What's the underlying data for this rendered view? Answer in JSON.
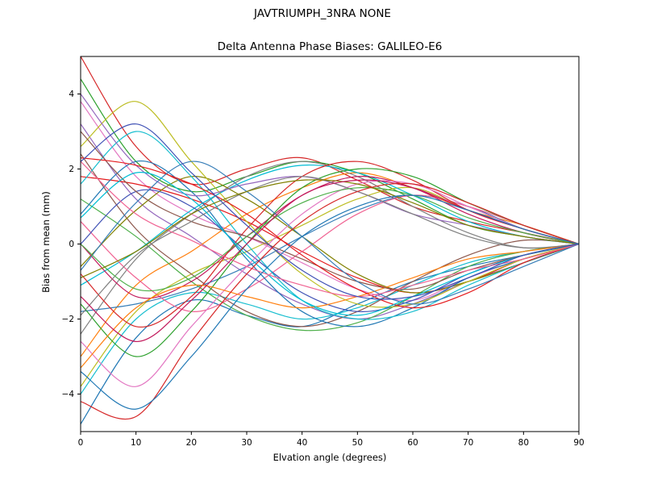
{
  "figure": {
    "suptitle": "JAVTRIUMPH_3NRA NONE",
    "title": "Delta Antenna Phase Biases: GALILEO-E6",
    "xlabel": "Elvation angle (degrees)",
    "ylabel": "Bias from mean (mm)"
  },
  "chart_data": {
    "type": "line",
    "suptitle": "JAVTRIUMPH_3NRA NONE",
    "title": "Delta Antenna Phase Biases: GALILEO-E6",
    "xlabel": "Elvation angle (degrees)",
    "ylabel": "Bias from mean (mm)",
    "xlim": [
      0,
      90
    ],
    "ylim": [
      -5,
      5
    ],
    "xticks": [
      0,
      10,
      20,
      30,
      40,
      50,
      60,
      70,
      80,
      90
    ],
    "yticks": [
      -4,
      -2,
      0,
      2,
      4
    ],
    "grid": false,
    "legend": "none",
    "x": [
      0,
      10,
      20,
      30,
      40,
      50,
      60,
      70,
      80,
      90
    ],
    "series": [
      {
        "color": "#d62728",
        "values": [
          5.0,
          2.6,
          1.6,
          2.0,
          2.3,
          1.7,
          1.0,
          0.6,
          0.3,
          0
        ]
      },
      {
        "color": "#1f77b4",
        "values": [
          -4.8,
          -2.5,
          -1.5,
          -1.9,
          -2.2,
          -1.6,
          -1.0,
          -0.6,
          -0.3,
          0
        ]
      },
      {
        "color": "#2ca02c",
        "values": [
          4.4,
          2.2,
          1.4,
          1.8,
          2.2,
          1.9,
          1.2,
          0.5,
          0.2,
          0
        ]
      },
      {
        "color": "#17becf",
        "values": [
          -4.0,
          -2.0,
          -1.3,
          -1.6,
          -2.0,
          -1.7,
          -1.1,
          -0.5,
          -0.2,
          0
        ]
      },
      {
        "color": "#e377c2",
        "values": [
          3.8,
          1.8,
          0.8,
          0.2,
          -0.5,
          -1.2,
          -1.5,
          -0.9,
          -0.4,
          0
        ]
      },
      {
        "color": "#bcbd22",
        "values": [
          -3.8,
          -1.8,
          -0.8,
          -0.2,
          0.5,
          1.2,
          1.5,
          0.9,
          0.4,
          0
        ]
      },
      {
        "color": "#9467bd",
        "values": [
          3.2,
          1.2,
          0.2,
          -0.8,
          -1.6,
          -2.0,
          -1.6,
          -1.0,
          -0.5,
          0
        ]
      },
      {
        "color": "#ff7f0e",
        "values": [
          -3.0,
          -1.1,
          -0.2,
          0.8,
          1.5,
          1.9,
          1.5,
          0.9,
          0.5,
          0
        ]
      },
      {
        "color": "#8c564b",
        "values": [
          2.4,
          0.4,
          -0.8,
          -1.8,
          -2.2,
          -1.8,
          -1.0,
          -0.3,
          0.1,
          0
        ]
      },
      {
        "color": "#7f7f7f",
        "values": [
          -2.4,
          -0.4,
          0.8,
          1.8,
          2.2,
          1.8,
          1.0,
          0.3,
          -0.1,
          0
        ]
      },
      {
        "color": "#e41a1c",
        "values": [
          1.8,
          1.6,
          1.2,
          0.6,
          -0.2,
          -0.9,
          -1.3,
          -1.0,
          -0.4,
          0
        ]
      },
      {
        "color": "#377eb8",
        "values": [
          -1.8,
          -1.6,
          -1.2,
          -0.6,
          0.2,
          0.9,
          1.3,
          1.0,
          0.4,
          0
        ]
      },
      {
        "color": "#4daf4a",
        "values": [
          1.2,
          0.2,
          -1.0,
          -1.9,
          -2.3,
          -2.1,
          -1.4,
          -0.6,
          -0.2,
          0
        ]
      },
      {
        "color": "#00bcd4",
        "values": [
          -1.1,
          -0.2,
          0.9,
          1.7,
          2.1,
          1.9,
          1.3,
          0.6,
          0.2,
          0
        ]
      },
      {
        "color": "#f06292",
        "values": [
          0.6,
          -0.9,
          -1.8,
          -1.2,
          -0.2,
          0.8,
          1.3,
          1.0,
          0.5,
          0
        ]
      },
      {
        "color": "#808000",
        "values": [
          -0.6,
          0.9,
          1.8,
          1.2,
          0.2,
          -0.8,
          -1.3,
          -1.0,
          -0.5,
          0
        ]
      },
      {
        "color": "#c2185b",
        "values": [
          0.0,
          -1.4,
          -1.0,
          0.2,
          1.3,
          1.8,
          1.5,
          0.8,
          0.3,
          0
        ]
      },
      {
        "color": "#3f51b5",
        "values": [
          0.0,
          1.4,
          1.0,
          -0.2,
          -1.3,
          -1.8,
          -1.5,
          -0.8,
          -0.3,
          0
        ]
      },
      {
        "color": "#d62728",
        "values": [
          -0.8,
          -2.2,
          -1.4,
          0.4,
          1.8,
          2.2,
          1.7,
          0.9,
          0.4,
          0
        ]
      },
      {
        "color": "#1f77b4",
        "values": [
          0.8,
          2.2,
          1.4,
          -0.4,
          -1.8,
          -2.2,
          -1.7,
          -0.9,
          -0.4,
          0
        ]
      },
      {
        "color": "#2ca02c",
        "values": [
          -1.6,
          -3.0,
          -1.8,
          0.0,
          1.5,
          2.0,
          1.8,
          1.1,
          0.5,
          0
        ]
      },
      {
        "color": "#17becf",
        "values": [
          1.6,
          3.0,
          1.8,
          0.0,
          -1.5,
          -2.0,
          -1.8,
          -1.1,
          -0.5,
          0
        ]
      },
      {
        "color": "#e377c2",
        "values": [
          -2.6,
          -3.8,
          -2.2,
          -0.6,
          0.8,
          1.6,
          1.6,
          1.0,
          0.4,
          0
        ]
      },
      {
        "color": "#bcbd22",
        "values": [
          2.6,
          3.8,
          2.2,
          0.6,
          -0.8,
          -1.6,
          -1.6,
          -1.0,
          -0.4,
          0
        ]
      },
      {
        "color": "#9467bd",
        "values": [
          4.0,
          2.1,
          1.3,
          1.6,
          1.8,
          1.4,
          0.8,
          0.5,
          0.2,
          0
        ]
      },
      {
        "color": "#ff7f0e",
        "values": [
          -3.3,
          -1.7,
          -1.1,
          -1.4,
          -1.7,
          -1.4,
          -0.9,
          -0.4,
          -0.2,
          0
        ]
      },
      {
        "color": "#8c564b",
        "values": [
          3.0,
          1.4,
          0.6,
          0.2,
          -0.4,
          -1.0,
          -1.2,
          -0.7,
          -0.3,
          0
        ]
      },
      {
        "color": "#7f7f7f",
        "values": [
          -1.9,
          -0.3,
          0.6,
          1.4,
          1.8,
          1.4,
          0.8,
          0.2,
          -0.1,
          0
        ]
      },
      {
        "color": "#e41a1c",
        "values": [
          2.3,
          2.1,
          1.6,
          0.8,
          -0.3,
          -1.2,
          -1.7,
          -1.3,
          -0.5,
          0
        ]
      },
      {
        "color": "#377eb8",
        "values": [
          -0.7,
          1.1,
          2.2,
          1.4,
          0.2,
          -1.0,
          -1.6,
          -1.2,
          -0.6,
          0
        ]
      },
      {
        "color": "#4daf4a",
        "values": [
          0.0,
          -1.2,
          -0.9,
          0.2,
          1.1,
          1.5,
          1.3,
          0.7,
          0.3,
          0
        ]
      },
      {
        "color": "#00bcd4",
        "values": [
          0.7,
          1.9,
          1.2,
          -0.3,
          -1.5,
          -1.9,
          -1.4,
          -0.8,
          -0.3,
          0
        ]
      },
      {
        "color": "#f06292",
        "values": [
          2.2,
          0.8,
          0.1,
          -0.6,
          -1.1,
          -1.4,
          -1.1,
          -0.7,
          -0.4,
          0
        ]
      },
      {
        "color": "#808000",
        "values": [
          -0.9,
          -0.2,
          0.8,
          1.4,
          1.7,
          1.6,
          1.1,
          0.5,
          0.2,
          0
        ]
      },
      {
        "color": "#c2185b",
        "values": [
          -1.4,
          -2.6,
          -1.5,
          0.0,
          1.3,
          1.7,
          1.5,
          0.9,
          0.4,
          0
        ]
      },
      {
        "color": "#3f51b5",
        "values": [
          2.2,
          3.2,
          1.9,
          0.5,
          -0.7,
          -1.4,
          -1.4,
          -0.9,
          -0.3,
          0
        ]
      },
      {
        "color": "#d62728",
        "values": [
          -4.2,
          -4.6,
          -2.6,
          -0.8,
          0.6,
          1.4,
          1.6,
          1.1,
          0.5,
          0
        ]
      },
      {
        "color": "#1f77b4",
        "values": [
          -3.4,
          -4.4,
          -3.0,
          -1.2,
          0.2,
          1.0,
          1.3,
          0.9,
          0.4,
          0
        ]
      }
    ]
  }
}
